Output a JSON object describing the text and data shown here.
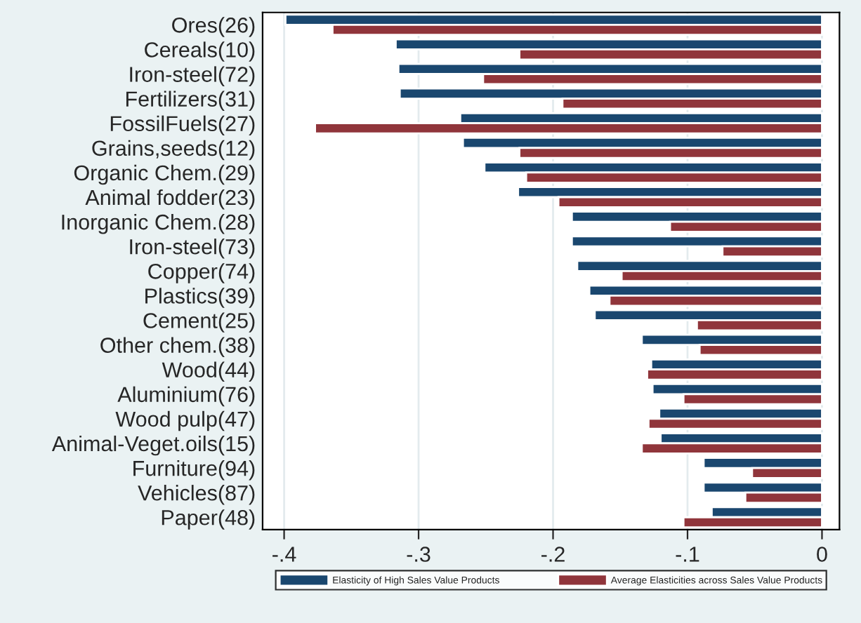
{
  "chart_data": {
    "type": "bar",
    "orientation": "horizontal",
    "categories": [
      "Ores(26)",
      "Cereals(10)",
      "Iron-steel(72)",
      "Fertilizers(31)",
      "FossilFuels(27)",
      "Grains,seeds(12)",
      "Organic Chem.(29)",
      "Animal fodder(23)",
      "Inorganic Chem.(28)",
      "Iron-steel(73)",
      "Copper(74)",
      "Plastics(39)",
      "Cement(25)",
      "Other chem.(38)",
      "Wood(44)",
      "Aluminium(76)",
      "Wood pulp(47)",
      "Animal-Veget.oils(15)",
      "Furniture(94)",
      "Vehicles(87)",
      "Paper(48)"
    ],
    "series": [
      {
        "name": "Elasticity of High Sales Value Products",
        "color": "#1a476f",
        "values": [
          -0.399,
          -0.317,
          -0.315,
          -0.314,
          -0.269,
          -0.267,
          -0.251,
          -0.226,
          -0.186,
          -0.186,
          -0.182,
          -0.173,
          -0.169,
          -0.134,
          -0.127,
          -0.126,
          -0.121,
          -0.12,
          -0.088,
          -0.088,
          -0.082
        ]
      },
      {
        "name": "Average Elasticities across Sales Value Products",
        "color": "#90353b",
        "values": [
          -0.364,
          -0.225,
          -0.252,
          -0.193,
          -0.377,
          -0.225,
          -0.22,
          -0.196,
          -0.113,
          -0.074,
          -0.149,
          -0.158,
          -0.093,
          -0.091,
          -0.13,
          -0.103,
          -0.129,
          -0.134,
          -0.052,
          -0.057,
          -0.103
        ]
      }
    ],
    "xlim": [
      -0.416,
      0.013
    ],
    "xticks": [
      {
        "value": -0.4,
        "label": "-.4"
      },
      {
        "value": -0.3,
        "label": "-.3"
      },
      {
        "value": -0.2,
        "label": "-.2"
      },
      {
        "value": -0.1,
        "label": "-.1"
      },
      0
    ],
    "grid": "x",
    "legend": "bottom"
  }
}
